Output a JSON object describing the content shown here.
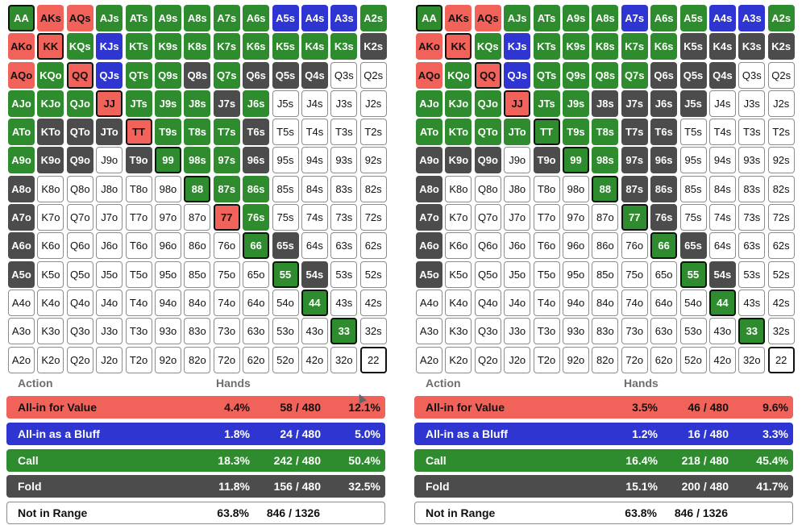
{
  "labels": [
    "AA",
    "AKs",
    "AQs",
    "AJs",
    "ATs",
    "A9s",
    "A8s",
    "A7s",
    "A6s",
    "A5s",
    "A4s",
    "A3s",
    "A2s",
    "AKo",
    "KK",
    "KQs",
    "KJs",
    "KTs",
    "K9s",
    "K8s",
    "K7s",
    "K6s",
    "K5s",
    "K4s",
    "K3s",
    "K2s",
    "AQo",
    "KQo",
    "QQ",
    "QJs",
    "QTs",
    "Q9s",
    "Q8s",
    "Q7s",
    "Q6s",
    "Q5s",
    "Q4s",
    "Q3s",
    "Q2s",
    "AJo",
    "KJo",
    "QJo",
    "JJ",
    "JTs",
    "J9s",
    "J8s",
    "J7s",
    "J6s",
    "J5s",
    "J4s",
    "J3s",
    "J2s",
    "ATo",
    "KTo",
    "QTo",
    "JTo",
    "TT",
    "T9s",
    "T8s",
    "T7s",
    "T6s",
    "T5s",
    "T4s",
    "T3s",
    "T2s",
    "A9o",
    "K9o",
    "Q9o",
    "J9o",
    "T9o",
    "99",
    "98s",
    "97s",
    "96s",
    "95s",
    "94s",
    "93s",
    "92s",
    "A8o",
    "K8o",
    "Q8o",
    "J8o",
    "T8o",
    "98o",
    "88",
    "87s",
    "86s",
    "85s",
    "84s",
    "83s",
    "82s",
    "A7o",
    "K7o",
    "Q7o",
    "J7o",
    "T7o",
    "97o",
    "87o",
    "77",
    "76s",
    "75s",
    "74s",
    "73s",
    "72s",
    "A6o",
    "K6o",
    "Q6o",
    "J6o",
    "T6o",
    "96o",
    "86o",
    "76o",
    "66",
    "65s",
    "64s",
    "63s",
    "62s",
    "A5o",
    "K5o",
    "Q5o",
    "J5o",
    "T5o",
    "95o",
    "85o",
    "75o",
    "65o",
    "55",
    "54s",
    "53s",
    "52s",
    "A4o",
    "K4o",
    "Q4o",
    "J4o",
    "T4o",
    "94o",
    "84o",
    "74o",
    "64o",
    "54o",
    "44",
    "43s",
    "42s",
    "A3o",
    "K3o",
    "Q3o",
    "J3o",
    "T3o",
    "93o",
    "83o",
    "73o",
    "63o",
    "53o",
    "43o",
    "33",
    "32s",
    "A2o",
    "K2o",
    "Q2o",
    "J2o",
    "T2o",
    "92o",
    "82o",
    "72o",
    "62o",
    "52o",
    "42o",
    "32o",
    "22"
  ],
  "headers": {
    "action": "Action",
    "hands": "Hands"
  },
  "colors": {
    "value": "#f0625a",
    "bluff": "#2e35d0",
    "call": "#2e8b2e",
    "fold": "#4c4c4c",
    "none": "#ffffff"
  },
  "panels": [
    {
      "actions": [
        {
          "label": "All-in for Value",
          "pct": "4.4%",
          "count": "58 / 480",
          "pct2": "12.1%"
        },
        {
          "label": "All-in as a Bluff",
          "pct": "1.8%",
          "count": "24 / 480",
          "pct2": "5.0%"
        },
        {
          "label": "Call",
          "pct": "18.3%",
          "count": "242 / 480",
          "pct2": "50.4%"
        },
        {
          "label": "Fold",
          "pct": "11.8%",
          "count": "156 / 480",
          "pct2": "32.5%"
        },
        {
          "label": "Not in Range",
          "pct": "63.8%",
          "count": "846 / 1326",
          "pct2": ""
        }
      ],
      "grid": [
        "grrggggggbbbg",
        "rrgbggggggggd",
        "rgrbggdgdddww",
        "gggrgggdgwwww",
        "gdddrgggdwwww",
        "gddwdgggdwwww",
        "dwwwwwgggwwww",
        "dwwwwwwrgwwww",
        "dwwwwwwwgdwww",
        "dwwwwwwwwgdww",
        "wwwwwwwwwwgww",
        "wwwwwwwwwwwgw",
        "wwwwwwwwwwwww"
      ]
    },
    {
      "actions": [
        {
          "label": "All-in for Value",
          "pct": "3.5%",
          "count": "46 / 480",
          "pct2": "9.6%"
        },
        {
          "label": "All-in as a Bluff",
          "pct": "1.2%",
          "count": "16 / 480",
          "pct2": "3.3%"
        },
        {
          "label": "Call",
          "pct": "16.4%",
          "count": "218 / 480",
          "pct2": "45.4%"
        },
        {
          "label": "Fold",
          "pct": "15.1%",
          "count": "200 / 480",
          "pct2": "41.7%"
        },
        {
          "label": "Not in Range",
          "pct": "63.8%",
          "count": "846 / 1326",
          "pct2": ""
        }
      ],
      "grid": [
        "grrggggbggbbg",
        "rrgbgggggdddd",
        "rgrbggggdddww",
        "gggrggddddwww",
        "gggggggddwwww",
        "dddwdggddwwww",
        "dwwwwwgddwwww",
        "dwwwwwwgdwwww",
        "dwwwwwwwgdwww",
        "dwwwwwwwwgdww",
        "wwwwwwwwwwgww",
        "wwwwwwwwwwwgw",
        "wwwwwwwwwwwww"
      ]
    }
  ]
}
